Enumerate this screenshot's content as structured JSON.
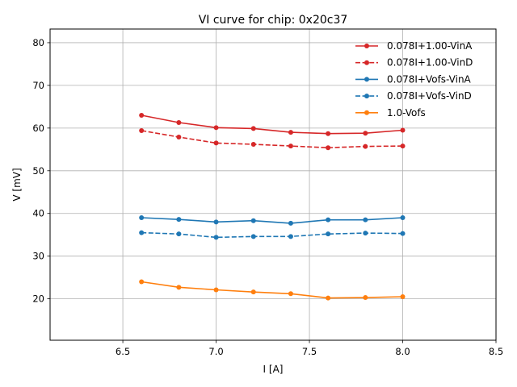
{
  "chart_data": {
    "type": "line",
    "title": "VI curve for chip: 0x20c37",
    "xlabel": "I [A]",
    "ylabel": "V [mV]",
    "xlim": [
      6.11,
      8.5
    ],
    "ylim": [
      10.3,
      83.2
    ],
    "xticks": [
      6.5,
      7.0,
      7.5,
      8.0,
      8.5
    ],
    "xtick_labels": [
      "6.5",
      "7.0",
      "7.5",
      "8.0",
      "8.5"
    ],
    "yticks": [
      20,
      30,
      40,
      50,
      60,
      70,
      80
    ],
    "ytick_labels": [
      "20",
      "30",
      "40",
      "50",
      "60",
      "70",
      "80"
    ],
    "grid": true,
    "legend_position": "top-right",
    "x": [
      6.6,
      6.8,
      7.0,
      7.2,
      7.4,
      7.6,
      7.8,
      8.0
    ],
    "series": [
      {
        "name": "0.078I+1.00-VinA",
        "color": "#d62728",
        "style": "solid",
        "values": [
          63.0,
          61.3,
          60.1,
          59.9,
          59.0,
          58.7,
          58.8,
          59.5
        ]
      },
      {
        "name": "0.078I+1.00-VinD",
        "color": "#d62728",
        "style": "dashed",
        "values": [
          59.4,
          57.9,
          56.5,
          56.2,
          55.8,
          55.4,
          55.7,
          55.8
        ]
      },
      {
        "name": "0.078I+Vofs-VinA",
        "color": "#1f77b4",
        "style": "solid",
        "values": [
          39.0,
          38.6,
          38.0,
          38.3,
          37.7,
          38.5,
          38.5,
          39.0
        ]
      },
      {
        "name": "0.078I+Vofs-VinD",
        "color": "#1f77b4",
        "style": "dashed",
        "values": [
          35.5,
          35.2,
          34.4,
          34.6,
          34.6,
          35.2,
          35.4,
          35.3
        ]
      },
      {
        "name": "1.0-Vofs",
        "color": "#ff7f0e",
        "style": "solid",
        "values": [
          24.0,
          22.7,
          22.1,
          21.6,
          21.2,
          20.2,
          20.3,
          20.5
        ]
      }
    ]
  }
}
